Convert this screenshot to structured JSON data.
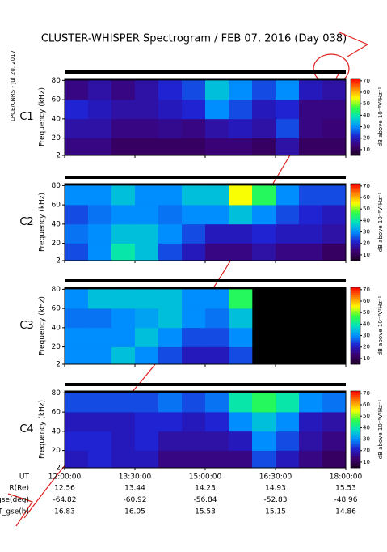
{
  "title": "CLUSTER-WHISPER Spectrogram / FEB 07, 2016 (Day 038)",
  "side_note": "LPCE/CNRS - Jul 20, 2017",
  "colormap": [
    "#1a0022",
    "#3c0070",
    "#2020d0",
    "#0090ff",
    "#00e0c0",
    "#30ff40",
    "#ffff00",
    "#ff8000",
    "#ff0000"
  ],
  "chart_data": [
    {
      "type": "heatmap",
      "label": "C1",
      "label_color": "#000000",
      "ylabel": "Frequency (kHz)",
      "xlim": [
        12,
        18
      ],
      "xticks": [
        12,
        13.5,
        15,
        16.5,
        18
      ],
      "ylim": [
        2,
        82
      ],
      "yticks": [
        2,
        20,
        40,
        60,
        80
      ],
      "time_bins": [
        12,
        12.5,
        13,
        13.5,
        14,
        14.5,
        15,
        15.5,
        16,
        16.5,
        17,
        17.5,
        18
      ],
      "freq_bins": [
        2,
        20,
        40,
        60,
        80
      ],
      "values": [
        [
          15,
          15,
          12,
          12,
          12,
          12,
          14,
          14,
          12,
          18,
          12,
          12
        ],
        [
          18,
          18,
          15,
          15,
          16,
          15,
          18,
          20,
          18,
          25,
          15,
          14
        ],
        [
          22,
          20,
          18,
          18,
          20,
          22,
          30,
          25,
          20,
          22,
          15,
          15
        ],
        [
          15,
          18,
          15,
          18,
          22,
          25,
          35,
          30,
          25,
          30,
          20,
          18
        ]
      ],
      "clim": [
        5,
        72
      ],
      "cticks": [
        10,
        20,
        30,
        40,
        50,
        60,
        70
      ],
      "clabel": "dB above 10⁻⁶V²Hz⁻¹"
    },
    {
      "type": "heatmap",
      "label": "C2",
      "label_color": "#000000",
      "ylabel": "Frequency (kHz)",
      "xlim": [
        12,
        18
      ],
      "xticks": [
        12,
        13.5,
        15,
        16.5,
        18
      ],
      "ylim": [
        2,
        82
      ],
      "yticks": [
        2,
        20,
        40,
        60,
        80
      ],
      "time_bins": [
        12,
        12.5,
        13,
        13.5,
        14,
        14.5,
        15,
        15.5,
        16,
        16.5,
        17,
        17.5,
        18
      ],
      "freq_bins": [
        2,
        20,
        40,
        60,
        80
      ],
      "values": [
        [
          25,
          30,
          40,
          35,
          25,
          20,
          15,
          15,
          18,
          15,
          15,
          12
        ],
        [
          28,
          30,
          35,
          35,
          30,
          25,
          20,
          20,
          22,
          20,
          20,
          18
        ],
        [
          25,
          28,
          30,
          30,
          28,
          30,
          30,
          35,
          30,
          25,
          22,
          20
        ],
        [
          30,
          30,
          35,
          30,
          30,
          35,
          35,
          55,
          45,
          30,
          25,
          25
        ]
      ],
      "clim": [
        5,
        72
      ],
      "cticks": [
        10,
        20,
        30,
        40,
        50,
        60,
        70
      ],
      "clabel": "dB above 10⁻⁶V²Hz⁻¹"
    },
    {
      "type": "heatmap",
      "label": "C3",
      "label_color": "#22aa22",
      "ylabel": "Frequency (kHz)",
      "xlim": [
        12,
        18
      ],
      "xticks": [
        12,
        13.5,
        15,
        16.5,
        18
      ],
      "ylim": [
        2,
        82
      ],
      "yticks": [
        2,
        20,
        40,
        60,
        80
      ],
      "time_bins": [
        12,
        12.5,
        13,
        13.5,
        14,
        14.5,
        15,
        15.5,
        16,
        16.5,
        17,
        17.5,
        18
      ],
      "freq_bins": [
        2,
        20,
        40,
        60,
        80
      ],
      "values": [
        [
          30,
          30,
          35,
          30,
          25,
          20,
          20,
          25,
          null,
          null,
          null,
          null
        ],
        [
          30,
          30,
          30,
          35,
          30,
          25,
          25,
          30,
          null,
          null,
          null,
          null
        ],
        [
          28,
          28,
          30,
          32,
          35,
          30,
          28,
          35,
          null,
          null,
          null,
          null
        ],
        [
          30,
          35,
          35,
          35,
          35,
          30,
          30,
          45,
          null,
          null,
          null,
          null
        ]
      ],
      "clim": [
        5,
        72
      ],
      "cticks": [
        10,
        20,
        30,
        40,
        50,
        60,
        70
      ],
      "clabel": "dB above 10⁻⁶V²Hz⁻¹"
    },
    {
      "type": "heatmap",
      "label": "C4",
      "label_color": "#000000",
      "ylabel": "Frequency (kHz)",
      "xlim": [
        12,
        18
      ],
      "xticks": [
        {
          "value": 12,
          "label": "12:00:00"
        },
        {
          "value": 13.5,
          "label": "13:30:00"
        },
        {
          "value": 15,
          "label": "15:00:00"
        },
        {
          "value": 16.5,
          "label": "16:30:00"
        },
        {
          "value": 18,
          "label": "18:00:00"
        }
      ],
      "ylim": [
        2,
        82
      ],
      "yticks": [
        2,
        20,
        40,
        60,
        80
      ],
      "time_bins": [
        12,
        12.5,
        13,
        13.5,
        14,
        14.5,
        15,
        15.5,
        16,
        16.5,
        17,
        17.5,
        18
      ],
      "freq_bins": [
        2,
        20,
        40,
        60,
        80
      ],
      "values": [
        [
          20,
          22,
          20,
          20,
          15,
          15,
          15,
          15,
          25,
          20,
          15,
          12
        ],
        [
          22,
          22,
          20,
          22,
          18,
          18,
          18,
          20,
          30,
          25,
          18,
          15
        ],
        [
          20,
          20,
          20,
          22,
          22,
          20,
          22,
          30,
          35,
          30,
          20,
          18
        ],
        [
          25,
          25,
          25,
          25,
          28,
          25,
          28,
          40,
          45,
          40,
          30,
          28
        ]
      ],
      "clim": [
        5,
        72
      ],
      "cticks": [
        10,
        20,
        30,
        40,
        50,
        60,
        70
      ],
      "clabel": "dB above 10⁻⁶V²Hz⁻¹"
    }
  ],
  "orbit": {
    "time_label": "UT",
    "rows": [
      {
        "label": "R(Re)",
        "values": [
          12.56,
          13.44,
          14.23,
          14.93,
          15.53
        ]
      },
      {
        "label": "Lat_gse(deg)",
        "values": [
          -64.82,
          -60.92,
          -56.84,
          -52.83,
          -48.96
        ]
      },
      {
        "label": "LT_gse(h)",
        "values": [
          16.83,
          16.05,
          15.53,
          15.15,
          14.86
        ]
      }
    ]
  }
}
